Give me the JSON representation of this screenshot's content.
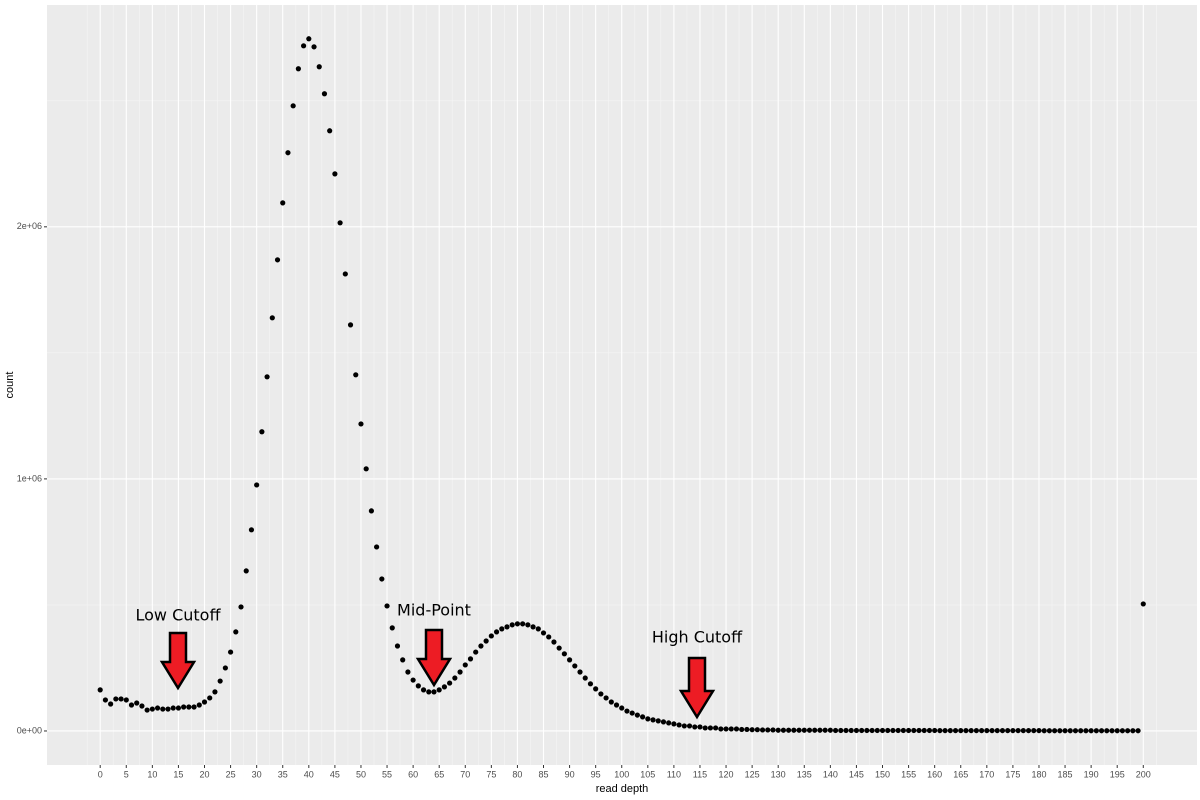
{
  "chart_data": {
    "type": "scatter",
    "xlabel": "read depth",
    "ylabel": "count",
    "annotations": [
      "Low Cutoff",
      "Mid-Point",
      "High Cutoff"
    ],
    "color": "#000000",
    "grid": true,
    "xlim": [
      -10.2,
      210.3
    ],
    "ylim": [
      -135000,
      2880000
    ],
    "xticks": [
      0,
      5,
      10,
      15,
      20,
      25,
      30,
      35,
      40,
      45,
      50,
      55,
      60,
      65,
      70,
      75,
      80,
      85,
      90,
      95,
      100,
      105,
      110,
      115,
      120,
      125,
      130,
      135,
      140,
      145,
      150,
      155,
      160,
      165,
      170,
      175,
      180,
      185,
      190,
      195,
      200
    ],
    "yticks": [
      {
        "value": 0,
        "label": "0e+00"
      },
      {
        "value": 1000000,
        "label": "1e+06"
      },
      {
        "value": 2000000,
        "label": "2e+06"
      }
    ],
    "x": [
      0,
      1,
      2,
      3,
      4,
      5,
      6,
      7,
      8,
      9,
      10,
      11,
      12,
      13,
      14,
      15,
      16,
      17,
      18,
      19,
      20,
      21,
      22,
      23,
      24,
      25,
      26,
      27,
      28,
      29,
      30,
      31,
      32,
      33,
      34,
      35,
      36,
      37,
      38,
      39,
      40,
      41,
      42,
      43,
      44,
      45,
      46,
      47,
      48,
      49,
      50,
      51,
      52,
      53,
      54,
      55,
      56,
      57,
      58,
      59,
      60,
      61,
      62,
      63,
      64,
      65,
      66,
      67,
      68,
      69,
      70,
      71,
      72,
      73,
      74,
      75,
      76,
      77,
      78,
      79,
      80,
      81,
      82,
      83,
      84,
      85,
      86,
      87,
      88,
      89,
      90,
      91,
      92,
      93,
      94,
      95,
      96,
      97,
      98,
      99,
      100,
      101,
      102,
      103,
      104,
      105,
      106,
      107,
      108,
      109,
      110,
      111,
      112,
      113,
      114,
      115,
      116,
      117,
      118,
      119,
      120,
      121,
      122,
      123,
      124,
      125,
      126,
      127,
      128,
      129,
      130,
      131,
      132,
      133,
      134,
      135,
      136,
      137,
      138,
      139,
      140,
      141,
      142,
      143,
      144,
      145,
      146,
      147,
      148,
      149,
      150,
      151,
      152,
      153,
      154,
      155,
      156,
      157,
      158,
      159,
      160,
      161,
      162,
      163,
      164,
      165,
      166,
      167,
      168,
      169,
      170,
      171,
      172,
      173,
      174,
      175,
      176,
      177,
      178,
      179,
      180,
      181,
      182,
      183,
      184,
      185,
      186,
      187,
      188,
      189,
      190,
      191,
      192,
      193,
      194,
      195,
      196,
      197,
      198,
      199,
      200
    ],
    "values": [
      163000,
      123000,
      107000,
      127000,
      127000,
      123000,
      103000,
      111000,
      99000,
      83000,
      87000,
      91000,
      87000,
      87000,
      91000,
      91000,
      95000,
      95000,
      95000,
      103000,
      115000,
      131000,
      155000,
      198000,
      250000,
      313000,
      393000,
      492000,
      635000,
      798000,
      976000,
      1187000,
      1405000,
      1639000,
      1869000,
      2095000,
      2294000,
      2480000,
      2627000,
      2718000,
      2746000,
      2714000,
      2635000,
      2528000,
      2381000,
      2210000,
      2016000,
      1813000,
      1611000,
      1413000,
      1218000,
      1040000,
      873000,
      730000,
      603000,
      496000,
      409000,
      337000,
      282000,
      234000,
      202000,
      179000,
      163000,
      155000,
      155000,
      163000,
      175000,
      190000,
      210000,
      234000,
      262000,
      286000,
      313000,
      337000,
      357000,
      377000,
      393000,
      405000,
      413000,
      421000,
      425000,
      425000,
      421000,
      413000,
      405000,
      389000,
      373000,
      353000,
      329000,
      306000,
      282000,
      258000,
      234000,
      210000,
      187000,
      167000,
      147000,
      131000,
      115000,
      103000,
      91000,
      79000,
      71000,
      63000,
      56000,
      48000,
      44000,
      40000,
      36000,
      32000,
      28000,
      24000,
      20000,
      20000,
      16000,
      16000,
      12000,
      12000,
      12000,
      8000,
      8000,
      8000,
      8000,
      6000,
      6000,
      5000,
      5000,
      4000,
      4000,
      4000,
      3000,
      3000,
      3000,
      3000,
      3000,
      3000,
      3000,
      3000,
      3000,
      3000,
      3000,
      2000,
      2000,
      2000,
      2000,
      2000,
      2000,
      2000,
      2000,
      2000,
      2000,
      2000,
      2000,
      2000,
      2000,
      2000,
      2000,
      2000,
      2000,
      2000,
      2000,
      1500,
      1500,
      1500,
      1500,
      1500,
      1500,
      1500,
      1500,
      1500,
      1500,
      1500,
      1500,
      1500,
      1500,
      1500,
      1500,
      1500,
      1500,
      1500,
      1500,
      1000,
      1000,
      1000,
      1000,
      1000,
      1000,
      1000,
      1000,
      1000,
      1000,
      1000,
      1000,
      1000,
      1000,
      1000,
      1000,
      1000,
      1000,
      1000,
      504000
    ]
  }
}
